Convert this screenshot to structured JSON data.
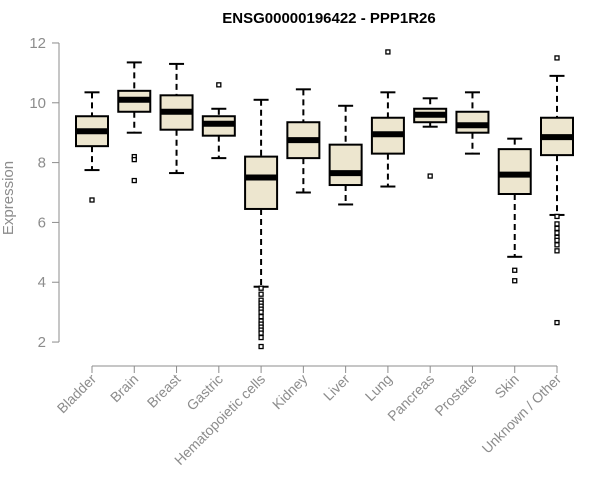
{
  "chart_data": {
    "type": "boxplot",
    "title": "ENSG00000196422 - PPP1R26",
    "xlabel": "",
    "ylabel": "Expression",
    "ylim": [
      1.5,
      12.3
    ],
    "yticks": [
      2,
      4,
      6,
      8,
      10,
      12
    ],
    "box_fill": "#ede6cf",
    "stroke_color": "#000000",
    "axis_color": "#8c8c8c",
    "categories": [
      "Bladder",
      "Brain",
      "Breast",
      "Gastric",
      "Hematopoietic cells",
      "Kidney",
      "Liver",
      "Lung",
      "Pancreas",
      "Prostate",
      "Skin",
      "Unknown / Other"
    ],
    "series": [
      {
        "name": "Bladder",
        "whisker_low": 7.75,
        "q1": 8.55,
        "median": 9.05,
        "q3": 9.55,
        "whisker_high": 10.35,
        "outliers": [
          6.75
        ]
      },
      {
        "name": "Brain",
        "whisker_low": 9.0,
        "q1": 9.7,
        "median": 10.1,
        "q3": 10.4,
        "whisker_high": 11.35,
        "outliers": [
          8.2,
          8.1,
          7.4
        ]
      },
      {
        "name": "Breast",
        "whisker_low": 7.65,
        "q1": 9.1,
        "median": 9.7,
        "q3": 10.25,
        "whisker_high": 11.3,
        "outliers": []
      },
      {
        "name": "Gastric",
        "whisker_low": 8.15,
        "q1": 8.9,
        "median": 9.3,
        "q3": 9.55,
        "whisker_high": 9.8,
        "outliers": [
          10.6
        ]
      },
      {
        "name": "Hematopoietic cells",
        "whisker_low": 3.85,
        "q1": 6.45,
        "median": 7.5,
        "q3": 8.2,
        "whisker_high": 10.1,
        "outliers": [
          3.8,
          3.6,
          3.4,
          3.3,
          3.2,
          3.1,
          3.0,
          2.85,
          2.7,
          2.6,
          2.5,
          2.4,
          2.3,
          2.15,
          1.85
        ]
      },
      {
        "name": "Kidney",
        "whisker_low": 7.0,
        "q1": 8.15,
        "median": 8.75,
        "q3": 9.35,
        "whisker_high": 10.45,
        "outliers": []
      },
      {
        "name": "Liver",
        "whisker_low": 6.6,
        "q1": 7.25,
        "median": 7.65,
        "q3": 8.6,
        "whisker_high": 9.9,
        "outliers": []
      },
      {
        "name": "Lung",
        "whisker_low": 7.2,
        "q1": 8.3,
        "median": 8.95,
        "q3": 9.5,
        "whisker_high": 10.35,
        "outliers": [
          11.7
        ]
      },
      {
        "name": "Pancreas",
        "whisker_low": 9.2,
        "q1": 9.35,
        "median": 9.6,
        "q3": 9.8,
        "whisker_high": 10.15,
        "outliers": [
          7.55
        ]
      },
      {
        "name": "Prostate",
        "whisker_low": 8.3,
        "q1": 9.0,
        "median": 9.25,
        "q3": 9.7,
        "whisker_high": 10.35,
        "outliers": []
      },
      {
        "name": "Skin",
        "whisker_low": 4.85,
        "q1": 6.95,
        "median": 7.6,
        "q3": 8.45,
        "whisker_high": 8.8,
        "outliers": [
          4.4,
          4.05
        ]
      },
      {
        "name": "Unknown / Other",
        "whisker_low": 6.25,
        "q1": 8.25,
        "median": 8.85,
        "q3": 9.5,
        "whisker_high": 10.9,
        "outliers": [
          11.5,
          6.2,
          5.95,
          5.8,
          5.65,
          5.5,
          5.4,
          5.25,
          5.05,
          2.65
        ]
      }
    ]
  }
}
